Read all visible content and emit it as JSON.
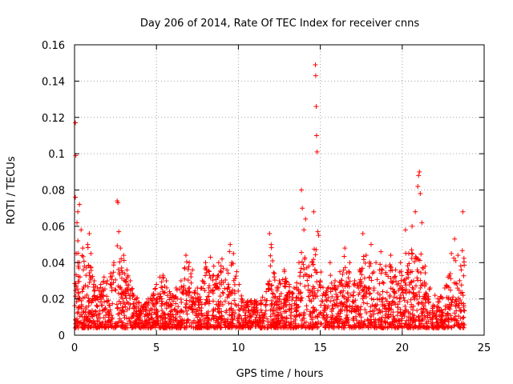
{
  "chart_data": {
    "type": "scatter",
    "title": "Day 206 of 2014, Rate Of TEC Index for receiver cnns",
    "xlabel": "GPS time / hours",
    "ylabel": "ROTI / TECUs",
    "xlim": [
      0,
      25
    ],
    "ylim": [
      0,
      0.16
    ],
    "xticks": [
      0,
      5,
      10,
      15,
      20,
      25
    ],
    "yticks": [
      0,
      0.02,
      0.04,
      0.06,
      0.08,
      0.1,
      0.12,
      0.14,
      0.16
    ],
    "xtick_labels": [
      "0",
      "5",
      "10",
      "15",
      "20",
      "25"
    ],
    "ytick_labels": [
      "0",
      "0.02",
      "0.04",
      "0.06",
      "0.08",
      "0.1",
      "0.12",
      "0.14",
      "0.16"
    ],
    "grid": true,
    "marker": "+",
    "color": "#ff0000",
    "series": [
      {
        "name": "ROTI",
        "points": [
          [
            0.05,
            0.117
          ],
          [
            0.08,
            0.099
          ],
          [
            0.05,
            0.076
          ],
          [
            0.2,
            0.068
          ],
          [
            0.3,
            0.072
          ],
          [
            0.15,
            0.062
          ],
          [
            0.4,
            0.058
          ],
          [
            0.2,
            0.052
          ],
          [
            0.5,
            0.048
          ],
          [
            0.1,
            0.045
          ],
          [
            0.3,
            0.04
          ],
          [
            0.6,
            0.038
          ],
          [
            0.9,
            0.056
          ],
          [
            0.8,
            0.05
          ],
          [
            1.0,
            0.045
          ],
          [
            0.7,
            0.033
          ],
          [
            1.2,
            0.03
          ],
          [
            1.4,
            0.026
          ],
          [
            1.6,
            0.028
          ],
          [
            1.8,
            0.032
          ],
          [
            2.0,
            0.03
          ],
          [
            2.2,
            0.034
          ],
          [
            2.4,
            0.04
          ],
          [
            2.6,
            0.074
          ],
          [
            2.65,
            0.073
          ],
          [
            2.7,
            0.057
          ],
          [
            2.8,
            0.048
          ],
          [
            3.0,
            0.044
          ],
          [
            3.2,
            0.036
          ],
          [
            3.4,
            0.03
          ],
          [
            3.6,
            0.022
          ],
          [
            3.9,
            0.018
          ],
          [
            4.2,
            0.016
          ],
          [
            4.5,
            0.02
          ],
          [
            4.8,
            0.022
          ],
          [
            5.0,
            0.028
          ],
          [
            5.2,
            0.032
          ],
          [
            5.4,
            0.033
          ],
          [
            5.6,
            0.03
          ],
          [
            5.8,
            0.024
          ],
          [
            6.0,
            0.022
          ],
          [
            6.2,
            0.026
          ],
          [
            6.5,
            0.03
          ],
          [
            6.8,
            0.044
          ],
          [
            7.0,
            0.04
          ],
          [
            7.2,
            0.036
          ],
          [
            7.5,
            0.026
          ],
          [
            7.8,
            0.03
          ],
          [
            8.0,
            0.04
          ],
          [
            8.3,
            0.043
          ],
          [
            8.5,
            0.038
          ],
          [
            8.8,
            0.04
          ],
          [
            9.0,
            0.042
          ],
          [
            9.3,
            0.036
          ],
          [
            9.5,
            0.05
          ],
          [
            9.7,
            0.045
          ],
          [
            9.9,
            0.035
          ],
          [
            10.2,
            0.02
          ],
          [
            10.5,
            0.016
          ],
          [
            10.8,
            0.014
          ],
          [
            11.1,
            0.015
          ],
          [
            11.4,
            0.018
          ],
          [
            11.7,
            0.024
          ],
          [
            11.9,
            0.056
          ],
          [
            12.0,
            0.05
          ],
          [
            12.2,
            0.034
          ],
          [
            12.5,
            0.03
          ],
          [
            12.8,
            0.036
          ],
          [
            13.1,
            0.028
          ],
          [
            13.4,
            0.026
          ],
          [
            13.7,
            0.04
          ],
          [
            13.85,
            0.08
          ],
          [
            13.9,
            0.07
          ],
          [
            14.0,
            0.058
          ],
          [
            14.1,
            0.064
          ],
          [
            14.3,
            0.038
          ],
          [
            14.5,
            0.04
          ],
          [
            14.6,
            0.068
          ],
          [
            14.7,
            0.149
          ],
          [
            14.72,
            0.143
          ],
          [
            14.75,
            0.126
          ],
          [
            14.77,
            0.11
          ],
          [
            14.8,
            0.101
          ],
          [
            14.85,
            0.057
          ],
          [
            14.9,
            0.055
          ],
          [
            15.0,
            0.03
          ],
          [
            15.3,
            0.022
          ],
          [
            15.6,
            0.04
          ],
          [
            15.9,
            0.03
          ],
          [
            16.2,
            0.035
          ],
          [
            16.5,
            0.048
          ],
          [
            16.8,
            0.04
          ],
          [
            17.1,
            0.03
          ],
          [
            17.4,
            0.036
          ],
          [
            17.6,
            0.056
          ],
          [
            17.8,
            0.044
          ],
          [
            18.1,
            0.05
          ],
          [
            18.4,
            0.04
          ],
          [
            18.7,
            0.046
          ],
          [
            19.0,
            0.038
          ],
          [
            19.3,
            0.044
          ],
          [
            19.6,
            0.036
          ],
          [
            19.9,
            0.04
          ],
          [
            20.2,
            0.058
          ],
          [
            20.4,
            0.045
          ],
          [
            20.6,
            0.06
          ],
          [
            20.8,
            0.068
          ],
          [
            20.95,
            0.082
          ],
          [
            21.0,
            0.088
          ],
          [
            21.05,
            0.09
          ],
          [
            21.1,
            0.078
          ],
          [
            21.2,
            0.062
          ],
          [
            21.4,
            0.038
          ],
          [
            21.7,
            0.026
          ],
          [
            22.0,
            0.022
          ],
          [
            22.3,
            0.02
          ],
          [
            22.6,
            0.026
          ],
          [
            22.8,
            0.032
          ],
          [
            23.0,
            0.045
          ],
          [
            23.2,
            0.053
          ],
          [
            23.4,
            0.044
          ],
          [
            23.6,
            0.036
          ],
          [
            23.7,
            0.068
          ]
        ]
      }
    ]
  }
}
